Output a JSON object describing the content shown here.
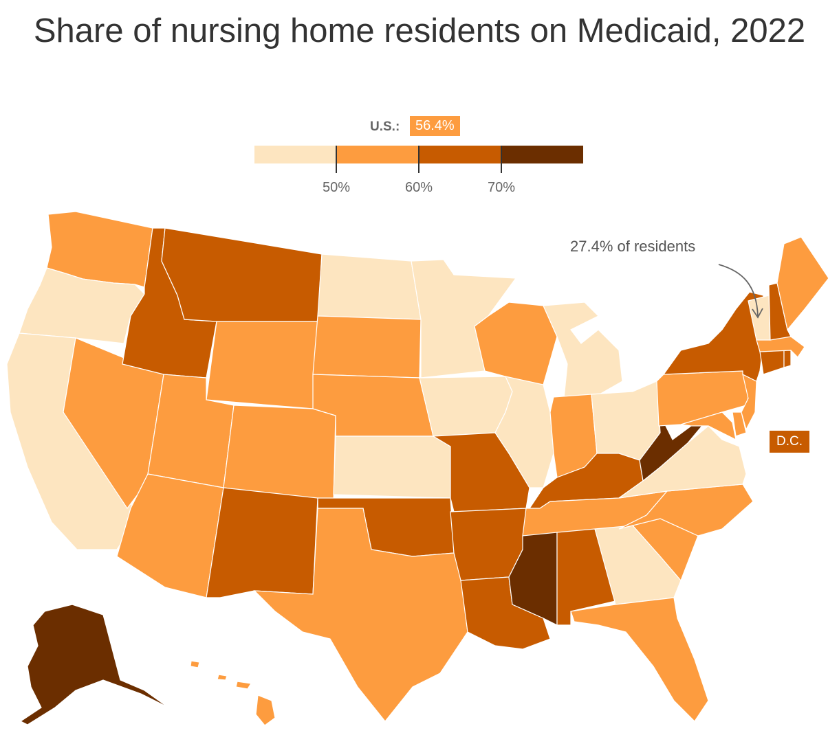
{
  "title": "Share of nursing home residents on Medicaid, 2022",
  "us_average": {
    "label": "U.S.:",
    "value": "56.4%"
  },
  "legend": {
    "bins": [
      {
        "range": "<50%",
        "color": "#fde5c0"
      },
      {
        "range": "50–60%",
        "color": "#fd9c3f"
      },
      {
        "range": "60–70%",
        "color": "#c75b00"
      },
      {
        "range": ">70%",
        "color": "#6b2e00"
      }
    ],
    "tick_labels": [
      "50%",
      "60%",
      "70%"
    ]
  },
  "annotation": {
    "text": "27.4% of residents",
    "target": "VT"
  },
  "dc_badge": {
    "label": "D.C.",
    "bin": 2
  },
  "map_data": {
    "projection": "Albers USA",
    "states": {
      "WA": 1,
      "OR": 0,
      "CA": 0,
      "NV": 1,
      "ID": 2,
      "MT": 2,
      "WY": 1,
      "UT": 1,
      "AZ": 1,
      "CO": 1,
      "NM": 2,
      "ND": 0,
      "SD": 1,
      "NE": 1,
      "KS": 0,
      "OK": 2,
      "TX": 1,
      "MN": 0,
      "IA": 0,
      "MO": 2,
      "AR": 2,
      "LA": 2,
      "WI": 1,
      "IL": 0,
      "MS": 3,
      "AL": 2,
      "MI": 0,
      "IN": 1,
      "OH": 0,
      "KY": 2,
      "TN": 1,
      "GA": 0,
      "FL": 1,
      "SC": 1,
      "NC": 1,
      "VA": 0,
      "WV": 3,
      "MD": 1,
      "DE": 1,
      "PA": 1,
      "NJ": 1,
      "NY": 2,
      "CT": 2,
      "RI": 2,
      "MA": 1,
      "VT": 0,
      "NH": 2,
      "ME": 1,
      "AK": 3,
      "HI": 1
    }
  }
}
